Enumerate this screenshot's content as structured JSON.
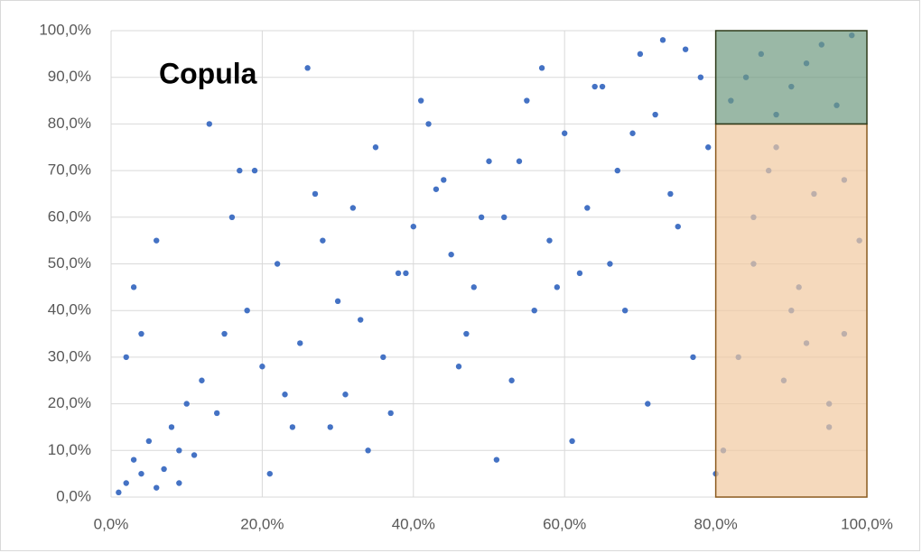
{
  "chart_data": {
    "type": "scatter",
    "annotation": "Copula",
    "series": [
      {
        "color": "#4472c4",
        "x": [
          2,
          3,
          1,
          5,
          4,
          6,
          8,
          2,
          7,
          10,
          12,
          9,
          3,
          15,
          14,
          11,
          18,
          20,
          16,
          22,
          25,
          19,
          24,
          28,
          30,
          27,
          33,
          35,
          31,
          38,
          40,
          36,
          42,
          45,
          44,
          48,
          50,
          47,
          52,
          55,
          53,
          58,
          60,
          57,
          62,
          65,
          63,
          68,
          70,
          67,
          72,
          75,
          73,
          77,
          79,
          78,
          74,
          71,
          66,
          61,
          56,
          51,
          46,
          41,
          37,
          32,
          26,
          21,
          17,
          13,
          6,
          4,
          9,
          23,
          29,
          34,
          39,
          43,
          49,
          54,
          59,
          64,
          69,
          76,
          81,
          83,
          85,
          87,
          89,
          91,
          93,
          95,
          97,
          99,
          82,
          84,
          86,
          88,
          90,
          92,
          94,
          96,
          98,
          80,
          85,
          90,
          95,
          88,
          92,
          97
        ],
        "values": [
          3,
          8,
          1,
          12,
          5,
          2,
          15,
          30,
          6,
          20,
          25,
          10,
          45,
          35,
          18,
          9,
          40,
          28,
          60,
          50,
          33,
          70,
          15,
          55,
          42,
          65,
          38,
          75,
          22,
          48,
          58,
          30,
          80,
          52,
          68,
          45,
          72,
          35,
          60,
          85,
          25,
          55,
          78,
          92,
          48,
          88,
          62,
          40,
          95,
          70,
          82,
          58,
          98,
          30,
          75,
          90,
          65,
          20,
          50,
          12,
          40,
          8,
          28,
          85,
          18,
          62,
          92,
          5,
          70,
          80,
          55,
          35,
          3,
          22,
          15,
          10,
          48,
          66,
          60,
          72,
          45,
          88,
          78,
          96,
          10,
          30,
          50,
          70,
          25,
          45,
          65,
          15,
          35,
          55,
          85,
          90,
          95,
          82,
          88,
          93,
          97,
          84,
          99,
          5,
          60,
          40,
          20,
          75,
          33,
          68
        ]
      }
    ],
    "regions": [
      {
        "xlim": [
          80,
          100
        ],
        "ylim": [
          0,
          80
        ],
        "color": "#f1c9a0",
        "border": "#8a5a1e"
      },
      {
        "xlim": [
          80,
          100
        ],
        "ylim": [
          80,
          100
        ],
        "color": "#6f9a80",
        "border": "#2e3a1a"
      }
    ],
    "xlim": [
      0,
      100
    ],
    "ylim": [
      0,
      100
    ],
    "xticks": [
      {
        "value": 0,
        "label": "0,0%"
      },
      {
        "value": 20,
        "label": "20,0%"
      },
      {
        "value": 40,
        "label": "40,0%"
      },
      {
        "value": 60,
        "label": "60,0%"
      },
      {
        "value": 80,
        "label": "80,0%"
      },
      {
        "value": 100,
        "label": "100,0%"
      }
    ],
    "yticks": [
      {
        "value": 0,
        "label": "0,0%"
      },
      {
        "value": 10,
        "label": "10,0%"
      },
      {
        "value": 20,
        "label": "20,0%"
      },
      {
        "value": 30,
        "label": "30,0%"
      },
      {
        "value": 40,
        "label": "40,0%"
      },
      {
        "value": 50,
        "label": "50,0%"
      },
      {
        "value": 60,
        "label": "60,0%"
      },
      {
        "value": 70,
        "label": "70,0%"
      },
      {
        "value": 80,
        "label": "80,0%"
      },
      {
        "value": 90,
        "label": "90,0%"
      },
      {
        "value": 100,
        "label": "100,0%"
      }
    ],
    "grid": true
  }
}
